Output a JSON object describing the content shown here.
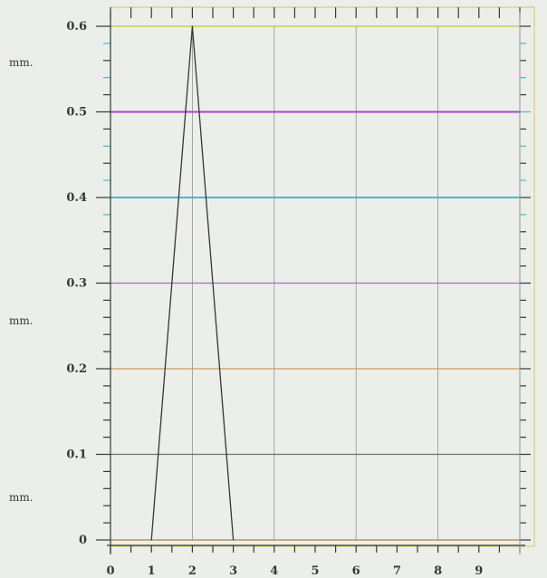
{
  "chart_data": {
    "type": "line",
    "title": "",
    "xlabel": "",
    "ylabel": "",
    "unit_labels": [
      "mm.",
      "mm.",
      "mm."
    ],
    "x_ticks": [
      "0",
      "1",
      "2",
      "3",
      "4",
      "5",
      "6",
      "7",
      "8",
      "9"
    ],
    "y_ticks": [
      "0",
      "0.1",
      "0.2",
      "0.3",
      "0.4",
      "0.5",
      "0.6"
    ],
    "xlim": [
      0,
      10
    ],
    "ylim": [
      0,
      0.6
    ],
    "grid": true,
    "series": [
      {
        "x": [
          1,
          2,
          3
        ],
        "y": [
          0,
          0.6,
          0
        ]
      }
    ],
    "horizontal_lines": [
      {
        "y": 0.6,
        "color": "#c8c040"
      },
      {
        "y": 0.5,
        "color": "#b040c8"
      },
      {
        "y": 0.4,
        "color": "#40c0c8"
      },
      {
        "y": 0.3,
        "color": "#a070c0"
      },
      {
        "y": 0.2,
        "color": "#c8a060"
      },
      {
        "y": 0.1,
        "color": "#707070"
      },
      {
        "y": 0.0,
        "color": "#b08040"
      }
    ],
    "colors": {
      "background": "#eceeea",
      "axis": "#2f3a3a",
      "grid": "#8c9696",
      "curve": "#2f3a3a",
      "frame": "#d8c850"
    }
  }
}
